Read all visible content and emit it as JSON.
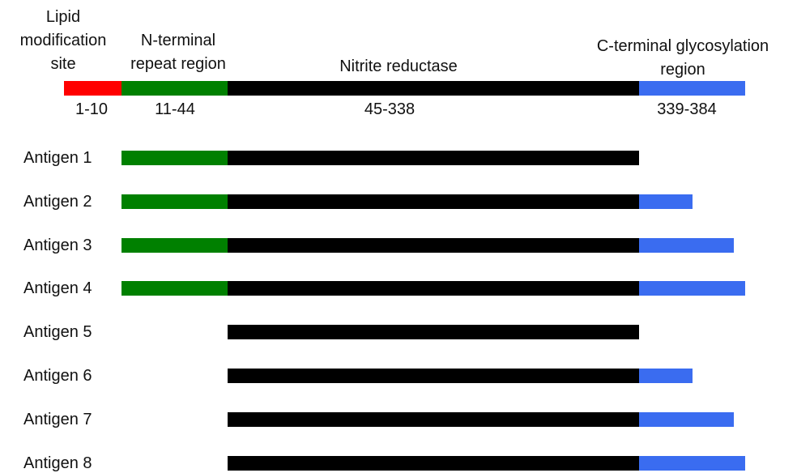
{
  "colors": {
    "lipid": "#ff0000",
    "repeat": "#008000",
    "reductase": "#000000",
    "glyco": "#3a6cf0"
  },
  "header": {
    "lipid_line1": "Lipid",
    "lipid_line2": "modification",
    "lipid_line3": "site",
    "repeat_line1": "N-terminal",
    "repeat_line2": "repeat region",
    "reductase": "Nitrite reductase",
    "glyco_line1": "C-terminal glycosylation",
    "glyco_line2": "region"
  },
  "domains": [
    {
      "name": "lipid",
      "start": 1,
      "end": 10,
      "range_label": "1-10"
    },
    {
      "name": "repeat",
      "start": 11,
      "end": 44,
      "range_label": "11-44"
    },
    {
      "name": "reductase",
      "start": 45,
      "end": 338,
      "range_label": "45-338"
    },
    {
      "name": "glyco",
      "start": 339,
      "end": 384,
      "range_label": "339-384"
    }
  ],
  "antigens": [
    {
      "label": "Antigen 1",
      "repeat": true,
      "reductase": true,
      "glyco_end": 338
    },
    {
      "label": "Antigen 2",
      "repeat": true,
      "reductase": true,
      "glyco_end": 361
    },
    {
      "label": "Antigen 3",
      "repeat": true,
      "reductase": true,
      "glyco_end": 379
    },
    {
      "label": "Antigen 4",
      "repeat": true,
      "reductase": true,
      "glyco_end": 384
    },
    {
      "label": "Antigen 5",
      "repeat": false,
      "reductase": true,
      "glyco_end": 338
    },
    {
      "label": "Antigen 6",
      "repeat": false,
      "reductase": true,
      "glyco_end": 361
    },
    {
      "label": "Antigen 7",
      "repeat": false,
      "reductase": true,
      "glyco_end": 379
    },
    {
      "label": "Antigen 8",
      "repeat": false,
      "reductase": true,
      "glyco_end": 384
    }
  ]
}
